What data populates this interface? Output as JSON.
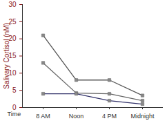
{
  "chart_data": {
    "type": "line",
    "x_label": "Time",
    "y_label": "Salivary Cortisol (nM)",
    "categories": [
      "8 AM",
      "Noon",
      "4 PM",
      "Midnight"
    ],
    "series": [
      {
        "color": "#555555",
        "values": [
          21,
          8,
          8,
          3.5
        ]
      },
      {
        "color": "#666666",
        "values": [
          13,
          4.2,
          4,
          2
        ]
      },
      {
        "color": "#33336b",
        "values": [
          4,
          4,
          2,
          1
        ]
      }
    ],
    "ylim": [
      0,
      30
    ],
    "yticks": [
      0,
      5,
      10,
      15,
      20,
      25,
      30
    ],
    "grid": false,
    "marker": "square"
  }
}
